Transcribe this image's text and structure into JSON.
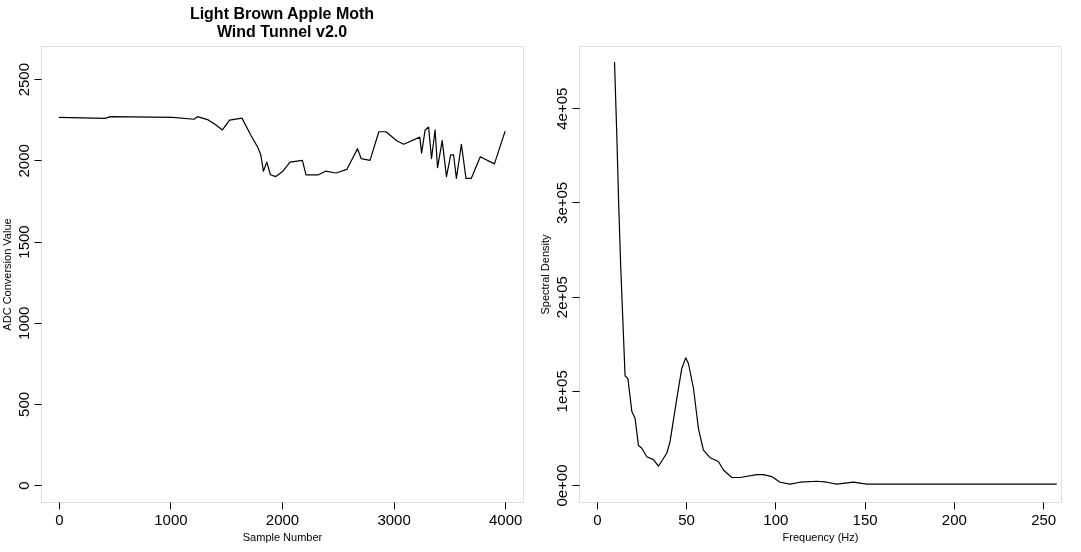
{
  "chart_data": [
    {
      "type": "line",
      "title": "Light Brown Apple Moth\nWind Tunnel v2.0",
      "xlabel": "Sample Number",
      "ylabel": "ADC Conversion Value",
      "xlim": [
        -160,
        4160
      ],
      "ylim": [
        -104,
        2704
      ],
      "xticks": [
        0,
        1000,
        2000,
        3000,
        4000
      ],
      "yticks": [
        0,
        500,
        1000,
        1500,
        2000,
        2500
      ],
      "grid": false,
      "marker": "none",
      "line_style": "solid",
      "series": [
        {
          "color": "#000000",
          "x": [
            0,
            414,
            462,
            1020,
            1211,
            1243,
            1339,
            1402,
            1466,
            1530,
            1641,
            1721,
            1785,
            1810,
            1833,
            1864,
            1896,
            1944,
            2008,
            2072,
            2183,
            2215,
            2327,
            2390,
            2486,
            2581,
            2677,
            2709,
            2789,
            2868,
            2932,
            3028,
            3091,
            3235,
            3251,
            3283,
            3314,
            3340,
            3372,
            3394,
            3436,
            3474,
            3512,
            3538,
            3563,
            3608,
            3649,
            3697,
            3777,
            3904,
            4000
          ],
          "values": [
            2264,
            2258,
            2269,
            2264,
            2253,
            2269,
            2249,
            2220,
            2187,
            2247,
            2260,
            2154,
            2077,
            2033,
            1933,
            1989,
            1911,
            1900,
            1933,
            1989,
            2000,
            1911,
            1911,
            1933,
            1922,
            1944,
            2072,
            2011,
            2000,
            2176,
            2176,
            2121,
            2099,
            2143,
            2044,
            2187,
            2205,
            2011,
            2187,
            1955,
            2121,
            1900,
            2033,
            2033,
            1889,
            2099,
            1889,
            1889,
            2022,
            1978,
            2180
          ]
        }
      ]
    },
    {
      "type": "line",
      "xlabel": "Frequency (Hz)",
      "ylabel": "Spectral Density",
      "xlim": [
        -10,
        260
      ],
      "ylim": [
        -18000,
        466000
      ],
      "xticks": [
        0,
        50,
        100,
        150,
        200,
        250
      ],
      "yticks": [
        {
          "value": 0,
          "label": "0e+00"
        },
        {
          "value": 100000,
          "label": "1e+05"
        },
        {
          "value": 200000,
          "label": "2e+05"
        },
        {
          "value": 300000,
          "label": "3e+05"
        },
        {
          "value": 400000,
          "label": "4e+05"
        }
      ],
      "grid": false,
      "marker": "none",
      "line_style": "solid",
      "series": [
        {
          "color": "#000000",
          "x": [
            9.9,
            11.2,
            12.2,
            13.4,
            14.9,
            15.8,
            17.4,
            19.6,
            21.4,
            23.3,
            25.2,
            28.0,
            31.7,
            34.5,
            39.2,
            41.0,
            44.8,
            47.6,
            49.8,
            51.3,
            54.1,
            56.9,
            59.7,
            63.4,
            68.1,
            70.9,
            75.6,
            80.2,
            89.6,
            93.3,
            98.0,
            102.6,
            108.2,
            113.8,
            123.2,
            128.8,
            134.4,
            143.7,
            151.2,
            158.6,
            173.6,
            201.6,
            210.9,
            257.6
          ],
          "values": [
            449000,
            370000,
            300000,
            230000,
            159000,
            116000,
            113000,
            78000,
            71000,
            42000,
            39000,
            30000,
            27000,
            20000,
            34000,
            46000,
            92000,
            124000,
            135000,
            129000,
            103000,
            60000,
            37000,
            29000,
            25000,
            16000,
            8000,
            8000,
            11000,
            11000,
            9000,
            3000,
            1000,
            3000,
            4000,
            3000,
            1000,
            3000,
            1000,
            1000,
            1000,
            1000,
            1000,
            1000
          ]
        }
      ]
    }
  ]
}
